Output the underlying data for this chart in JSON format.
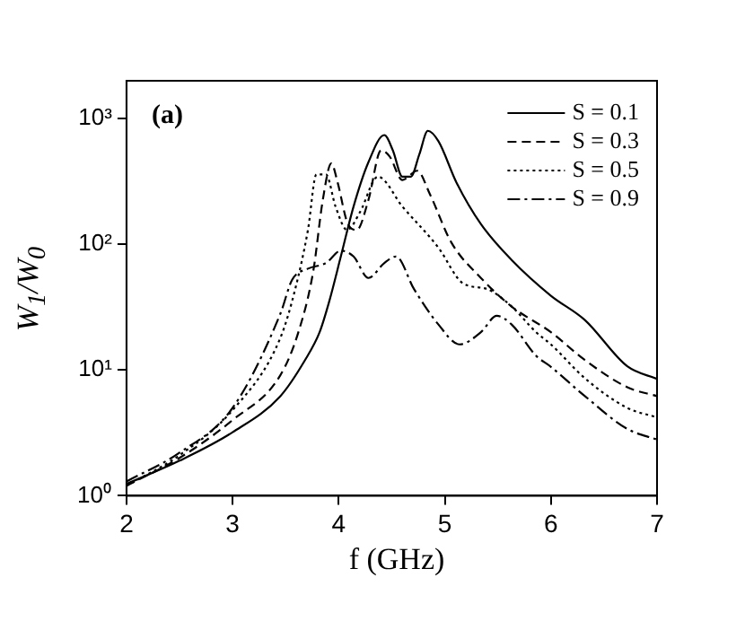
{
  "chart_data": {
    "type": "line",
    "xlabel": "f (GHz)",
    "ylabel": "W$_{1}$/W$_{0}$",
    "annotations": [
      "(a)"
    ],
    "xlim": [
      2,
      7
    ],
    "xticks": [
      2,
      3,
      4,
      5,
      6,
      7
    ],
    "ylim": [
      1,
      2000
    ],
    "yticks": [
      {
        "value": 1,
        "label": "10⁰"
      },
      {
        "value": 10,
        "label": "10¹"
      },
      {
        "value": 100,
        "label": "10²"
      },
      {
        "value": 1000,
        "label": "10³"
      }
    ],
    "log": "y",
    "grid": false,
    "legend": "top right",
    "marker": "none",
    "series": [
      {
        "name": "S = 0.1",
        "color": "#000000",
        "line_style": "solid",
        "x": [
          2,
          2.5,
          3,
          3.45,
          3.68,
          3.82,
          3.91,
          4.02,
          4.14,
          4.28,
          4.43,
          4.51,
          4.6,
          4.68,
          4.76,
          4.84,
          4.94,
          5.11,
          5.34,
          5.63,
          6,
          6.32,
          6.72,
          7
        ],
        "values": [
          1.24,
          1.9,
          3.2,
          6.2,
          11.9,
          20,
          35,
          80,
          200,
          450,
          740,
          560,
          345,
          345,
          520,
          800,
          660,
          310,
          145,
          75,
          39,
          25,
          10.7,
          8.5
        ]
      },
      {
        "name": "S = 0.3",
        "color": "#000000",
        "line_style": "dashed",
        "x": [
          2,
          2.5,
          3,
          3.45,
          3.62,
          3.76,
          3.85,
          3.93,
          3.99,
          4.08,
          4.17,
          4.28,
          4.4,
          4.48,
          4.6,
          4.74,
          4.86,
          5.06,
          5.34,
          5.63,
          6,
          6.32,
          6.72,
          7
        ],
        "values": [
          1.2,
          2,
          4,
          9.1,
          20,
          61,
          225,
          440,
          310,
          150,
          130,
          225,
          560,
          500,
          325,
          385,
          250,
          104,
          54,
          32,
          20,
          12,
          7.3,
          6.2
        ]
      },
      {
        "name": "S = 0.5",
        "color": "#000000",
        "line_style": "dotted",
        "x": [
          2,
          2.5,
          3,
          3.45,
          3.59,
          3.71,
          3.79,
          3.88,
          3.97,
          4.08,
          4.2,
          4.37,
          4.6,
          4.94,
          5.17,
          5.4,
          5.63,
          5.86,
          6,
          6.32,
          6.72,
          7
        ],
        "values": [
          1.2,
          2.1,
          4.8,
          18,
          44,
          130,
          360,
          360,
          200,
          130,
          180,
          345,
          200,
          94,
          49,
          44,
          32,
          20,
          16,
          8.6,
          5,
          4.2
        ]
      },
      {
        "name": "S = 0.9",
        "color": "#000000",
        "line_style": "dashdot",
        "x": [
          2,
          2.5,
          3,
          3.45,
          3.56,
          3.71,
          3.88,
          4.02,
          4.14,
          4.28,
          4.43,
          4.54,
          4.71,
          4.94,
          5.14,
          5.34,
          5.49,
          5.63,
          5.86,
          6,
          6.32,
          6.72,
          7
        ],
        "values": [
          1.3,
          2.2,
          5,
          28,
          52,
          64,
          71,
          89,
          80,
          54,
          71,
          80,
          44,
          23,
          16,
          20,
          27,
          23,
          13,
          10.6,
          6.2,
          3.4,
          2.8
        ]
      }
    ]
  }
}
